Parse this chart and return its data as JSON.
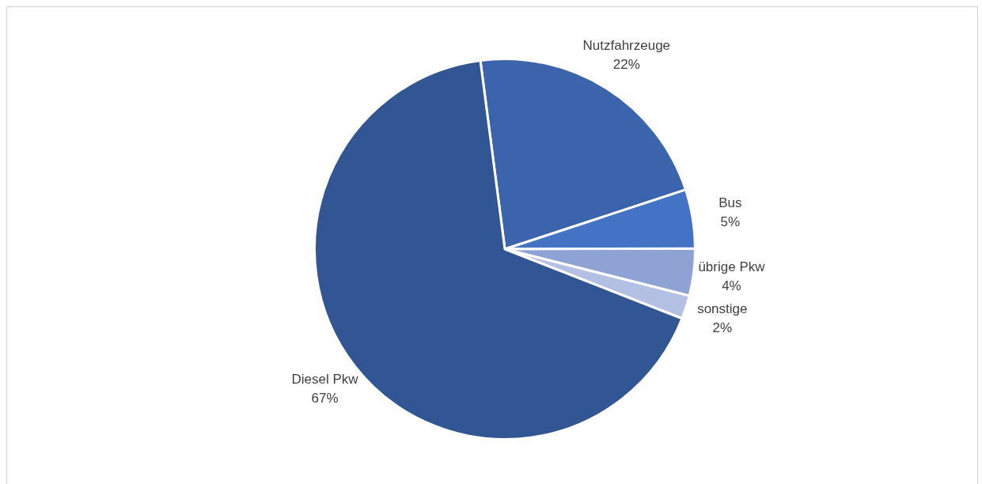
{
  "chart_data": {
    "type": "pie",
    "categories": [
      "Nutzfahrzeuge",
      "Bus",
      "übrige Pkw",
      "sonstige",
      "Diesel Pkw"
    ],
    "values": [
      22,
      5,
      4,
      2,
      67
    ],
    "value_labels": [
      "22%",
      "5%",
      "4%",
      "2%",
      "67%"
    ],
    "colors": [
      "#3c64ad",
      "#4472c4",
      "#8fa2d4",
      "#b4c0e3",
      "#325694"
    ],
    "legend": false
  }
}
